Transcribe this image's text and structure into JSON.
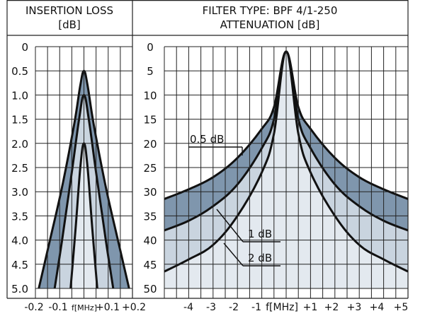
{
  "headers": {
    "left_line1": "INSERTION LOSS",
    "left_line2": "[dB]",
    "right_line1": "FILTER TYPE: BPF 4/1-250",
    "right_line2": "ATTENUATION [dB]"
  },
  "colors": {
    "fill_dark": "#7f96ad",
    "fill_light": "#c9d4df",
    "fill_lightest": "#e3e9ef",
    "curve": "#111111",
    "grid": "#222222"
  },
  "chart_data": [
    {
      "type": "line",
      "panel": "insertion-loss",
      "title": "INSERTION LOSS [dB]",
      "xlabel": "f[MHz]",
      "x_ticks": [
        "-0.2",
        "-0.1",
        "f[MHz]",
        "+0.1",
        "+0.2"
      ],
      "y_ticks": [
        "0",
        "0.5",
        "1.0",
        "1.5",
        "2.0",
        "2.5",
        "3.0",
        "3.5",
        "4.0",
        "4.5",
        "5.0"
      ],
      "xlim": [
        -0.2,
        0.2
      ],
      "ylim": [
        0,
        5.0
      ],
      "y_inverted": true,
      "grid": true,
      "series": [
        {
          "name": "0.5 dB",
          "peak": 0.5,
          "x": [
            -0.2,
            -0.14,
            -0.09,
            -0.04,
            -0.015,
            0,
            0.015,
            0.04,
            0.09,
            0.14,
            0.2
          ],
          "y": [
            5.3,
            4.0,
            2.9,
            1.6,
            0.8,
            0.5,
            0.8,
            1.6,
            2.9,
            4.0,
            5.3
          ]
        },
        {
          "name": "1 dB",
          "peak": 1.0,
          "x": [
            -0.13,
            -0.09,
            -0.05,
            -0.02,
            0,
            0.02,
            0.05,
            0.09,
            0.13
          ],
          "y": [
            5.3,
            4.0,
            2.6,
            1.5,
            1.0,
            1.5,
            2.6,
            4.0,
            5.3
          ]
        },
        {
          "name": "2 dB",
          "peak": 2.0,
          "x": [
            -0.06,
            -0.035,
            -0.015,
            0,
            0.015,
            0.035,
            0.06
          ],
          "y": [
            5.3,
            3.8,
            2.5,
            2.0,
            2.5,
            3.8,
            5.3
          ]
        }
      ]
    },
    {
      "type": "line",
      "panel": "attenuation",
      "title": "ATTENUATION [dB]",
      "xlabel": "f[MHz]",
      "x_ticks": [
        "-4",
        "-3",
        "-2",
        "-1",
        "f[MHz]",
        "+1",
        "+2",
        "+3",
        "+4",
        "+5"
      ],
      "y_ticks": [
        "0",
        "5",
        "10",
        "15",
        "20",
        "25",
        "30",
        "35",
        "40",
        "45",
        "50"
      ],
      "xlim": [
        -5,
        5
      ],
      "ylim": [
        0,
        50
      ],
      "y_inverted": true,
      "grid": true,
      "annotations": [
        "0.5 dB",
        "1 dB",
        "2 dB"
      ],
      "series": [
        {
          "name": "0.5 dB",
          "x": [
            -5,
            -4,
            -3,
            -2,
            -1,
            -0.5,
            0,
            0.5,
            1,
            2,
            3,
            4,
            5
          ],
          "y": [
            31.5,
            29.5,
            27,
            23,
            17,
            12.5,
            1,
            12.5,
            17,
            23,
            27,
            29.5,
            31.5
          ]
        },
        {
          "name": "1 dB",
          "x": [
            -5,
            -4,
            -3,
            -2,
            -1,
            -0.5,
            0,
            0.5,
            1,
            2,
            3,
            4,
            5
          ],
          "y": [
            38,
            36,
            33,
            28.5,
            21,
            15,
            1,
            15,
            21,
            28.5,
            33,
            36,
            38
          ]
        },
        {
          "name": "2 dB",
          "x": [
            -5,
            -4,
            -3,
            -2,
            -1,
            -0.5,
            0,
            0.5,
            1,
            2,
            3,
            4,
            5
          ],
          "y": [
            46.5,
            44,
            41,
            35,
            26,
            18,
            1,
            18,
            26,
            35,
            41,
            44,
            46.5
          ]
        }
      ]
    }
  ]
}
